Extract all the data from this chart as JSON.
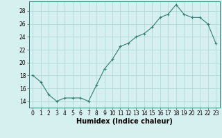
{
  "x": [
    0,
    1,
    2,
    3,
    4,
    5,
    6,
    7,
    8,
    9,
    10,
    11,
    12,
    13,
    14,
    15,
    16,
    17,
    18,
    19,
    20,
    21,
    22,
    23
  ],
  "y": [
    18,
    17,
    15,
    14,
    14.5,
    14.5,
    14.5,
    14,
    16.5,
    19,
    20.5,
    22.5,
    23,
    24,
    24.5,
    25.5,
    27,
    27.5,
    29,
    27.5,
    27,
    27,
    26,
    23
  ],
  "line_color": "#2e7d6e",
  "marker_color": "#2e7d6e",
  "background_color": "#d6f0f0",
  "grid_color": "#b0d8d8",
  "xlabel": "Humidex (Indice chaleur)",
  "xlim": [
    -0.5,
    23.5
  ],
  "ylim": [
    13,
    29.5
  ],
  "yticks": [
    14,
    16,
    18,
    20,
    22,
    24,
    26,
    28
  ],
  "xticks": [
    0,
    1,
    2,
    3,
    4,
    5,
    6,
    7,
    8,
    9,
    10,
    11,
    12,
    13,
    14,
    15,
    16,
    17,
    18,
    19,
    20,
    21,
    22,
    23
  ],
  "tick_fontsize": 5.5,
  "xlabel_fontsize": 7.0
}
